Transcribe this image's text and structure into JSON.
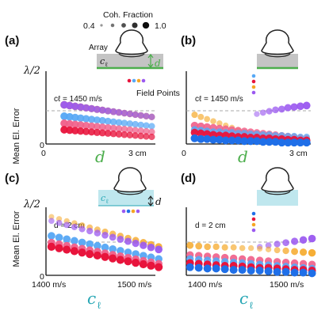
{
  "legend": {
    "title": "Coh. Fraction",
    "min_label": "0.4",
    "max_label": "1.0",
    "levels": [
      0.4,
      0.55,
      0.7,
      0.85,
      1.0
    ]
  },
  "colors": {
    "depth_green": "#4cae4c",
    "ctissue_teal": "#26a6b4",
    "tissue_gray": "#c4c4c4",
    "tissue_cyan": "#bfe7ee",
    "dashed": "#aaaaaa",
    "series_red": "#e8143c",
    "series_yellow": "#f5a623",
    "series_blue": "#1f6fe8",
    "series_lightblue": "#57a8f5",
    "series_purple": "#9b59f0"
  },
  "labels": {
    "ylabel": "Mean El. Error",
    "ytick_top": "λ/2",
    "ytick_zero": "0",
    "field_points": "Field Points",
    "array": "Array",
    "c_tissue_symbol": "c",
    "c_tissue_sub": "ℓ",
    "d_symbol": "d",
    "xlabel_d": "d",
    "xlabel_c": "c",
    "xlabel_c_sub": "ℓ"
  },
  "panels": [
    {
      "id": "a",
      "letter": "(a)",
      "annotation": "cℓ = 1450 m/s",
      "xmin_label": "0",
      "xmax_label": "3 cm"
    },
    {
      "id": "b",
      "letter": "(b)",
      "annotation": "cℓ = 1450 m/s",
      "xmin_label": "0",
      "xmax_label": "3 cm"
    },
    {
      "id": "c",
      "letter": "(c)",
      "annotation": "d = 2 cm",
      "xmin_label": "1400 m/s",
      "xmax_label": "1500 m/s"
    },
    {
      "id": "d",
      "letter": "(d)",
      "annotation": "d = 2 cm",
      "xmin_label": "1400 m/s",
      "xmax_label": "1500 m/s"
    }
  ],
  "chart_data": [
    {
      "type": "scatter",
      "panel": "a",
      "xlabel": "d",
      "ylabel": "Mean El. Error",
      "xlim": [
        0,
        3
      ],
      "ylim": [
        0,
        1
      ],
      "x": [
        0.5,
        0.65,
        0.8,
        0.95,
        1.1,
        1.25,
        1.4,
        1.55,
        1.7,
        1.85,
        2.0,
        2.15,
        2.3,
        2.45,
        2.6,
        2.75,
        2.9
      ],
      "coherence": [
        0.9,
        0.88,
        0.86,
        0.84,
        0.82,
        0.8,
        0.78,
        0.76,
        0.74,
        0.72,
        0.7,
        0.68,
        0.67,
        0.66,
        0.65,
        0.64,
        0.63
      ],
      "series": [
        {
          "color": "#f5a623",
          "y_start": 0.55,
          "y_end": 0.38
        },
        {
          "color": "#9b59f0",
          "y_start": 0.55,
          "y_end": 0.38
        },
        {
          "color": "#57a8f5",
          "y_start": 0.39,
          "y_end": 0.25
        },
        {
          "color": "#f0608a",
          "y_start": 0.29,
          "y_end": 0.17
        },
        {
          "color": "#e8143c",
          "y_start": 0.2,
          "y_end": 0.1
        }
      ]
    },
    {
      "type": "scatter",
      "panel": "b",
      "xlabel": "d",
      "ylabel": "Mean El. Error",
      "xlim": [
        0,
        3
      ],
      "ylim": [
        0,
        1
      ],
      "x": [
        0.2,
        0.35,
        0.5,
        0.65,
        0.8,
        0.95,
        1.1,
        1.25,
        1.4,
        1.55,
        1.7,
        1.85,
        2.0,
        2.15,
        2.3,
        2.45,
        2.6,
        2.75,
        2.9
      ],
      "series": [
        {
          "color": "#9b59f0",
          "y": [
            null,
            null,
            null,
            null,
            null,
            null,
            null,
            null,
            null,
            null,
            0.42,
            0.44,
            0.46,
            0.48,
            0.49,
            0.51,
            0.52,
            0.53,
            0.54
          ],
          "coherence": [
            0,
            0,
            0,
            0,
            0,
            0,
            0,
            0,
            0,
            0,
            0.45,
            0.55,
            0.62,
            0.68,
            0.74,
            0.8,
            0.85,
            0.88,
            0.9
          ]
        },
        {
          "color": "#f5a623",
          "y": [
            0.41,
            0.38,
            0.35,
            0.32,
            0.29,
            0.26,
            0.23,
            0.2,
            0.17,
            null,
            null,
            null,
            null,
            null,
            null,
            null,
            null,
            null,
            null
          ],
          "coherence": [
            0.6,
            0.55,
            0.52,
            0.5,
            0.48,
            0.46,
            0.44,
            0.42,
            0.4,
            0,
            0,
            0,
            0,
            0,
            0,
            0,
            0,
            0,
            0
          ]
        },
        {
          "color": "#f0608a",
          "y": [
            0.26,
            0.25,
            0.24,
            0.23,
            0.22,
            0.21,
            0.2,
            0.19,
            0.18,
            0.17,
            0.16,
            0.15,
            0.14,
            0.13,
            0.12,
            0.11,
            0.1,
            0.09,
            0.08
          ],
          "coherence": [
            0.85,
            0.84,
            0.83,
            0.82,
            0.81,
            0.8,
            0.79,
            0.78,
            0.77,
            0.76,
            0.75,
            0.74,
            0.73,
            0.72,
            0.71,
            0.7,
            0.69,
            0.68,
            0.67
          ]
        },
        {
          "color": "#57a8f5",
          "y": [
            0.2,
            0.19,
            0.18,
            0.17,
            0.17,
            0.16,
            0.16,
            0.15,
            0.15,
            0.14,
            0.14,
            0.13,
            0.13,
            0.12,
            0.12,
            0.11,
            0.11,
            0.1,
            0.1
          ],
          "coherence": [
            0.8,
            0.79,
            0.78,
            0.77,
            0.76,
            0.75,
            0.74,
            0.73,
            0.72,
            0.71,
            0.7,
            0.69,
            0.68,
            0.67,
            0.66,
            0.65,
            0.64,
            0.63,
            0.62
          ]
        },
        {
          "color": "#e8143c",
          "y": [
            0.16,
            0.15,
            0.14,
            0.13,
            0.12,
            0.12,
            0.11,
            0.1,
            0.1,
            0.09,
            0.09,
            0.08,
            0.08,
            0.07,
            0.07,
            0.06,
            0.06,
            0.05,
            0.05
          ],
          "coherence": [
            0.9,
            0.9,
            0.9,
            0.9,
            0.9,
            0.9,
            0.9,
            0.9,
            0.9,
            0.9,
            0.9,
            0.9,
            0.9,
            0.9,
            0.9,
            0.9,
            0.9,
            0.9,
            0.9
          ]
        },
        {
          "color": "#1f6fe8",
          "y": [
            0.08,
            0.07,
            0.07,
            0.06,
            0.06,
            0.05,
            0.05,
            0.05,
            0.04,
            0.04,
            0.04,
            0.03,
            0.03,
            0.03,
            0.02,
            0.02,
            0.02,
            0.02,
            0.02
          ],
          "coherence": [
            0.95,
            0.95,
            0.95,
            0.95,
            0.95,
            0.95,
            0.95,
            0.95,
            0.95,
            0.95,
            0.95,
            0.95,
            0.95,
            0.95,
            0.95,
            0.95,
            0.95,
            0.95,
            0.95
          ]
        }
      ]
    },
    {
      "type": "scatter",
      "panel": "c",
      "xlabel": "cℓ",
      "ylabel": "Mean El. Error",
      "xlim": [
        1400,
        1500
      ],
      "ylim": [
        0,
        1
      ],
      "x": [
        1405,
        1412,
        1419,
        1426,
        1433,
        1440,
        1447,
        1454,
        1461,
        1468,
        1475,
        1482,
        1489,
        1496,
        1503
      ],
      "series": [
        {
          "color": "#f5a623",
          "y_start": 0.86,
          "y_end": 0.42,
          "coh_start": 0.4,
          "coh_end": 0.8
        },
        {
          "color": "#9b59f0",
          "y_start": 0.8,
          "y_end": 0.38,
          "coh_start": 0.5,
          "coh_end": 0.9
        },
        {
          "color": "#57a8f5",
          "y_start": 0.58,
          "y_end": 0.24,
          "coh_start": 0.9,
          "coh_end": 0.9
        },
        {
          "color": "#f0608a",
          "y_start": 0.48,
          "y_end": 0.17,
          "coh_start": 0.9,
          "coh_end": 0.9
        },
        {
          "color": "#e8143c",
          "y_start": 0.42,
          "y_end": 0.12,
          "coh_start": 1.0,
          "coh_end": 1.0
        }
      ]
    },
    {
      "type": "scatter",
      "panel": "d",
      "xlabel": "cℓ",
      "ylabel": "Mean El. Error",
      "xlim": [
        1400,
        1500
      ],
      "ylim": [
        0,
        1
      ],
      "x": [
        1403,
        1410,
        1417,
        1424,
        1431,
        1438,
        1445,
        1452,
        1459,
        1466,
        1473,
        1480,
        1487,
        1494,
        1501
      ],
      "series": [
        {
          "color": "#9b59f0",
          "y": [
            null,
            null,
            null,
            null,
            null,
            null,
            null,
            null,
            0.42,
            0.44,
            0.46,
            0.48,
            0.5,
            0.52,
            0.54
          ],
          "coherence": [
            0,
            0,
            0,
            0,
            0,
            0,
            0,
            0,
            0.45,
            0.55,
            0.65,
            0.72,
            0.8,
            0.86,
            0.9
          ]
        },
        {
          "color": "#f5a623",
          "y": [
            0.44,
            0.43,
            0.42,
            0.42,
            0.41,
            0.41,
            0.4,
            0.4,
            0.39,
            0.38,
            0.37,
            0.36,
            0.35,
            0.34,
            0.33
          ],
          "coherence": [
            0.75,
            0.72,
            0.68,
            0.64,
            0.6,
            0.55,
            0.5,
            0.45,
            0.42,
            0.45,
            0.55,
            0.65,
            0.75,
            0.8,
            0.85
          ]
        },
        {
          "color": "#f0608a",
          "y": [
            0.3,
            0.29,
            0.28,
            0.27,
            0.26,
            0.25,
            0.24,
            0.23,
            0.22,
            0.21,
            0.2,
            0.19,
            0.18,
            0.17,
            0.16
          ],
          "coherence": [
            0.85,
            0.85,
            0.85,
            0.85,
            0.85,
            0.85,
            0.85,
            0.85,
            0.85,
            0.85,
            0.85,
            0.85,
            0.85,
            0.85,
            0.85
          ]
        },
        {
          "color": "#57a8f5",
          "y": [
            0.24,
            0.23,
            0.22,
            0.21,
            0.2,
            0.19,
            0.18,
            0.17,
            0.16,
            0.15,
            0.14,
            0.13,
            0.12,
            0.11,
            0.1
          ],
          "coherence": [
            0.85,
            0.85,
            0.85,
            0.85,
            0.85,
            0.85,
            0.85,
            0.85,
            0.85,
            0.85,
            0.85,
            0.85,
            0.85,
            0.85,
            0.85
          ]
        },
        {
          "color": "#e8143c",
          "y": [
            0.18,
            0.17,
            0.16,
            0.15,
            0.14,
            0.14,
            0.13,
            0.12,
            0.11,
            0.11,
            0.1,
            0.09,
            0.08,
            0.08,
            0.07
          ],
          "coherence": [
            0.95,
            0.95,
            0.95,
            0.95,
            0.95,
            0.95,
            0.95,
            0.95,
            0.95,
            0.95,
            0.95,
            0.95,
            0.95,
            0.95,
            0.95
          ]
        },
        {
          "color": "#1f6fe8",
          "y": [
            0.12,
            0.11,
            0.1,
            0.1,
            0.09,
            0.08,
            0.08,
            0.07,
            0.07,
            0.06,
            0.05,
            0.05,
            0.04,
            0.04,
            0.03
          ],
          "coherence": [
            0.95,
            0.95,
            0.95,
            0.95,
            0.95,
            0.95,
            0.95,
            0.95,
            0.95,
            0.95,
            0.95,
            0.95,
            0.95,
            0.95,
            0.95
          ]
        }
      ]
    }
  ]
}
